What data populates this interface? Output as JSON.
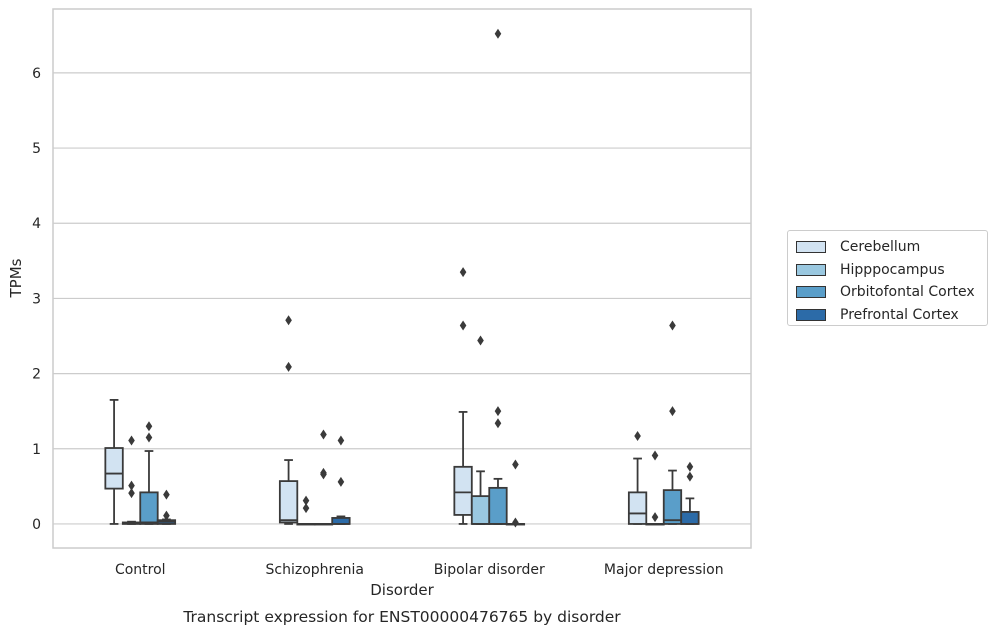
{
  "chart_data": {
    "type": "box",
    "title": "",
    "caption": "Transcript expression for ENST00000476765 by disorder",
    "xlabel": "Disorder",
    "ylabel": "TPMs",
    "ylim": [
      -0.32,
      6.85
    ],
    "yticks": [
      0,
      1,
      2,
      3,
      4,
      5,
      6
    ],
    "grid": "horizontal",
    "legend_placement": "right",
    "categories": [
      "Control",
      "Schizophrenia",
      "Bipolar disorder",
      "Major depression"
    ],
    "series": [
      {
        "name": "Cerebellum",
        "color": "#d2e3f2",
        "boxes": [
          {
            "min": 0,
            "q1": 0.47,
            "median": 0.67,
            "q3": 1.01,
            "max": 1.65,
            "outliers": []
          },
          {
            "min": 0,
            "q1": 0.02,
            "median": 0.05,
            "q3": 0.57,
            "max": 0.85,
            "outliers": [
              2.71,
              2.09
            ]
          },
          {
            "min": 0,
            "q1": 0.12,
            "median": 0.42,
            "q3": 0.76,
            "max": 1.49,
            "outliers": [
              3.35,
              2.64
            ]
          },
          {
            "min": 0,
            "q1": 0.0,
            "median": 0.14,
            "q3": 0.42,
            "max": 0.87,
            "outliers": [
              1.17
            ]
          }
        ]
      },
      {
        "name": "Hipppocampus",
        "color": "#9ac8e0",
        "boxes": [
          {
            "min": 0,
            "q1": 0.0,
            "median": 0.01,
            "q3": 0.02,
            "max": 0.03,
            "outliers": [
              1.11,
              0.51,
              0.41
            ]
          },
          {
            "min": 0,
            "q1": 0,
            "median": 0,
            "q3": 0,
            "max": 0,
            "outliers": [
              0.31,
              0.21
            ]
          },
          {
            "min": 0,
            "q1": 0.0,
            "median": 0.0,
            "q3": 0.37,
            "max": 0.7,
            "outliers": [
              2.44
            ]
          },
          {
            "min": 0,
            "q1": 0,
            "median": 0,
            "q3": 0,
            "max": 0,
            "outliers": [
              0.91,
              0.09
            ]
          }
        ]
      },
      {
        "name": "Orbitofontal Cortex",
        "color": "#5a9ec9",
        "boxes": [
          {
            "min": 0,
            "q1": 0.0,
            "median": 0.02,
            "q3": 0.42,
            "max": 0.97,
            "outliers": [
              1.3,
              1.15
            ]
          },
          {
            "min": 0,
            "q1": 0,
            "median": 0,
            "q3": 0,
            "max": 0,
            "outliers": [
              1.19,
              0.68,
              0.66
            ]
          },
          {
            "min": 0,
            "q1": 0.0,
            "median": 0.0,
            "q3": 0.48,
            "max": 0.6,
            "outliers": [
              6.52,
              1.5,
              1.34
            ]
          },
          {
            "min": 0,
            "q1": 0.0,
            "median": 0.05,
            "q3": 0.45,
            "max": 0.71,
            "outliers": [
              2.64,
              1.5
            ]
          }
        ]
      },
      {
        "name": "Prefrontal Cortex",
        "color": "#2c6ba8",
        "boxes": [
          {
            "min": 0,
            "q1": 0.0,
            "median": 0.03,
            "q3": 0.05,
            "max": 0.06,
            "outliers": [
              0.39,
              0.11
            ]
          },
          {
            "min": 0,
            "q1": 0.0,
            "median": 0.0,
            "q3": 0.08,
            "max": 0.1,
            "outliers": [
              1.11,
              0.56
            ]
          },
          {
            "min": 0,
            "q1": 0,
            "median": 0,
            "q3": 0,
            "max": 0,
            "outliers": [
              0.79,
              0.02
            ]
          },
          {
            "min": 0,
            "q1": 0.0,
            "median": 0.0,
            "q3": 0.16,
            "max": 0.34,
            "outliers": [
              0.76,
              0.63
            ]
          }
        ]
      }
    ]
  }
}
